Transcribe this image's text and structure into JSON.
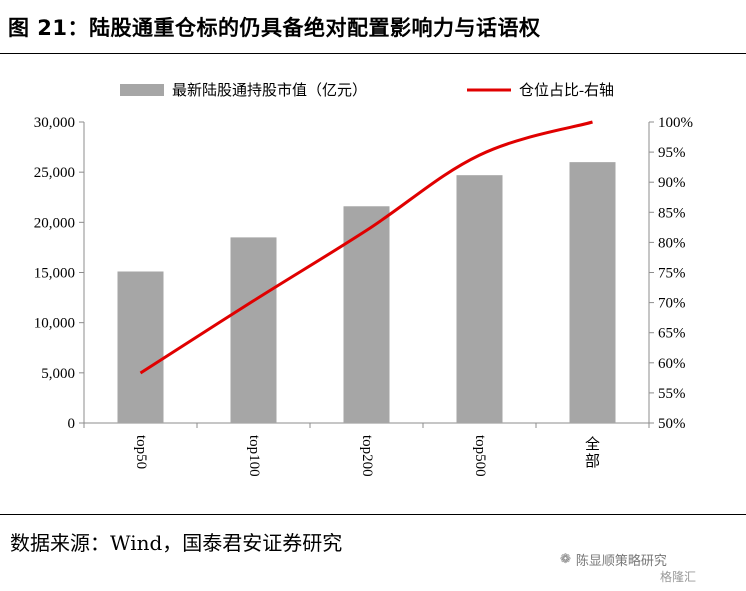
{
  "title": "图 21：陆股通重仓标的仍具备绝对配置影响力与话语权",
  "source": "数据来源：Wind，国泰君安证券研究",
  "watermark": {
    "text": "陈显顺策略研究",
    "sub": "格隆汇"
  },
  "colors": {
    "bar": "#a6a6a6",
    "line": "#e00000",
    "axis": "#8c8c8c"
  },
  "chart_data": {
    "type": "bar",
    "categories": [
      "top50",
      "top100",
      "top200",
      "top500",
      "全部"
    ],
    "series": [
      {
        "name": "最新陆股通持股市值（亿元）",
        "type": "bar",
        "axis": "left",
        "values": [
          15100,
          18500,
          21600,
          24700,
          26000
        ]
      },
      {
        "name": "仓位占比-右轴",
        "type": "line",
        "axis": "right",
        "values": [
          58.3,
          70.3,
          82.0,
          94.5,
          100.0
        ]
      }
    ],
    "y_left": {
      "min": 0,
      "max": 30000,
      "ticks": [
        "0",
        "5,000",
        "10,000",
        "15,000",
        "20,000",
        "25,000",
        "30,000"
      ],
      "tick_values": [
        0,
        5000,
        10000,
        15000,
        20000,
        25000,
        30000
      ]
    },
    "y_right": {
      "min": 50,
      "max": 100,
      "ticks": [
        "50%",
        "55%",
        "60%",
        "65%",
        "70%",
        "75%",
        "80%",
        "85%",
        "90%",
        "95%",
        "100%"
      ],
      "tick_values": [
        50,
        55,
        60,
        65,
        70,
        75,
        80,
        85,
        90,
        95,
        100
      ]
    },
    "legend_position": "top",
    "grid": false
  }
}
